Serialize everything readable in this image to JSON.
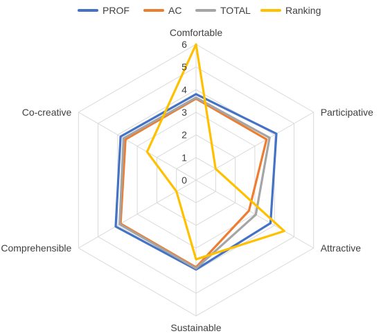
{
  "chart_data": {
    "type": "radar",
    "axes": [
      "Comfortable",
      "Participative",
      "Attractive",
      "Sustainable",
      "Comprehensible",
      "Co-creative"
    ],
    "rlim": [
      0,
      6
    ],
    "ticks": [
      "0",
      "1",
      "2",
      "3",
      "4",
      "5",
      "6"
    ],
    "grid": true,
    "legend_position": "top",
    "series": [
      {
        "name": "PROF",
        "color": "#4472C4",
        "values": [
          3.8,
          4.1,
          3.8,
          3.95,
          4.1,
          3.85
        ]
      },
      {
        "name": "AC",
        "color": "#ED7D31",
        "values": [
          3.6,
          3.6,
          2.7,
          3.85,
          3.85,
          3.6
        ]
      },
      {
        "name": "TOTAL",
        "color": "#A5A5A5",
        "values": [
          3.65,
          3.75,
          3.05,
          3.9,
          3.9,
          3.7
        ]
      },
      {
        "name": "Ranking",
        "color": "#FFC000",
        "values": [
          6.0,
          1.0,
          4.5,
          3.5,
          1.0,
          2.5
        ]
      }
    ]
  }
}
